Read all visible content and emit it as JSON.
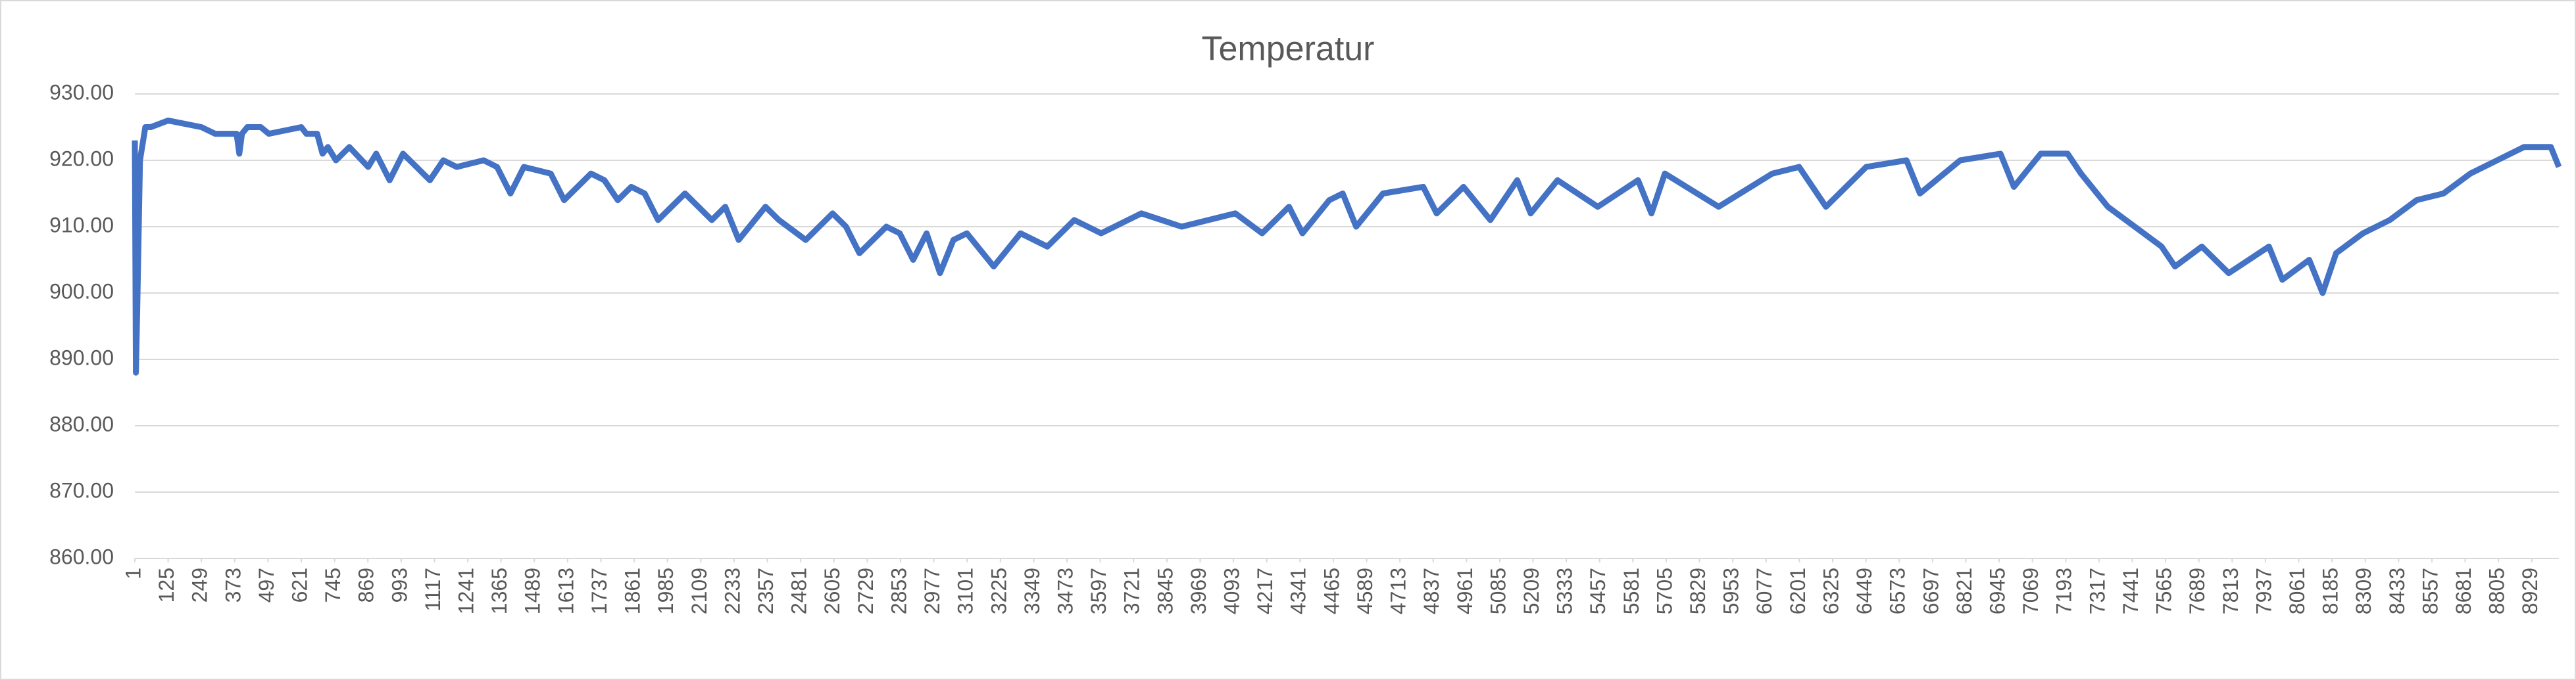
{
  "chart_data": {
    "type": "line",
    "title": "Temperatur",
    "x": [
      1,
      5,
      10,
      20,
      40,
      60,
      125,
      249,
      300,
      380,
      390,
      400,
      420,
      470,
      500,
      621,
      640,
      680,
      700,
      720,
      750,
      800,
      870,
      900,
      950,
      1000,
      1100,
      1150,
      1200,
      1300,
      1350,
      1400,
      1450,
      1550,
      1600,
      1700,
      1750,
      1800,
      1850,
      1900,
      1950,
      2050,
      2150,
      2200,
      2250,
      2350,
      2400,
      2500,
      2600,
      2650,
      2700,
      2800,
      2850,
      2900,
      2950,
      3000,
      3050,
      3100,
      3200,
      3300,
      3400,
      3500,
      3600,
      3700,
      3750,
      3900,
      4100,
      4200,
      4300,
      4350,
      4450,
      4500,
      4550,
      4650,
      4800,
      4850,
      4950,
      5050,
      5150,
      5200,
      5300,
      5450,
      5600,
      5650,
      5700,
      5900,
      6100,
      6200,
      6300,
      6450,
      6600,
      6650,
      6800,
      6950,
      7000,
      7100,
      7200,
      7250,
      7350,
      7450,
      7550,
      7600,
      7700,
      7800,
      7950,
      8000,
      8100,
      8150,
      8200,
      8300,
      8400,
      8500,
      8600,
      8700,
      8800,
      8900,
      9000,
      9030
    ],
    "values": [
      923,
      888,
      898,
      920,
      925,
      925,
      926,
      925,
      924,
      924,
      921,
      924,
      925,
      925,
      924,
      925,
      924,
      924,
      921,
      922,
      920,
      922,
      919,
      921,
      917,
      921,
      917,
      920,
      919,
      920,
      919,
      915,
      919,
      918,
      914,
      918,
      917,
      914,
      916,
      915,
      911,
      915,
      911,
      913,
      908,
      913,
      911,
      908,
      912,
      910,
      906,
      910,
      909,
      905,
      909,
      903,
      908,
      909,
      904,
      909,
      907,
      911,
      909,
      911,
      912,
      910,
      912,
      909,
      913,
      909,
      914,
      915,
      910,
      915,
      916,
      912,
      916,
      911,
      917,
      912,
      917,
      913,
      917,
      912,
      918,
      913,
      918,
      919,
      913,
      919,
      920,
      915,
      920,
      921,
      916,
      921,
      921,
      918,
      913,
      910,
      907,
      904,
      907,
      903,
      907,
      902,
      905,
      900,
      906,
      909,
      911,
      914,
      915,
      918,
      920,
      922,
      922,
      919
    ],
    "color": "#4472c4",
    "xlim": [
      1,
      9030
    ],
    "xticks": [
      1,
      125,
      249,
      373,
      497,
      621,
      745,
      869,
      993,
      1117,
      1241,
      1365,
      1489,
      1613,
      1737,
      1861,
      1985,
      2109,
      2233,
      2357,
      2481,
      2605,
      2729,
      2853,
      2977,
      3101,
      3225,
      3349,
      3473,
      3597,
      3721,
      3845,
      3969,
      4093,
      4217,
      4341,
      4465,
      4589,
      4713,
      4837,
      4961,
      5085,
      5209,
      5333,
      5457,
      5581,
      5705,
      5829,
      5953,
      6077,
      6201,
      6325,
      6449,
      6573,
      6697,
      6821,
      6945,
      7069,
      7193,
      7317,
      7441,
      7565,
      7689,
      7813,
      7937,
      8061,
      8185,
      8309,
      8433,
      8557,
      8681,
      8805,
      8929
    ],
    "ylim": [
      860,
      930
    ],
    "yticks": [
      {
        "value": 860,
        "label": "860.00"
      },
      {
        "value": 870,
        "label": "870.00"
      },
      {
        "value": 880,
        "label": "880.00"
      },
      {
        "value": 890,
        "label": "890.00"
      },
      {
        "value": 900,
        "label": "900.00"
      },
      {
        "value": 910,
        "label": "910.00"
      },
      {
        "value": 920,
        "label": "920.00"
      },
      {
        "value": 930,
        "label": "930.00"
      }
    ],
    "grid": true
  }
}
